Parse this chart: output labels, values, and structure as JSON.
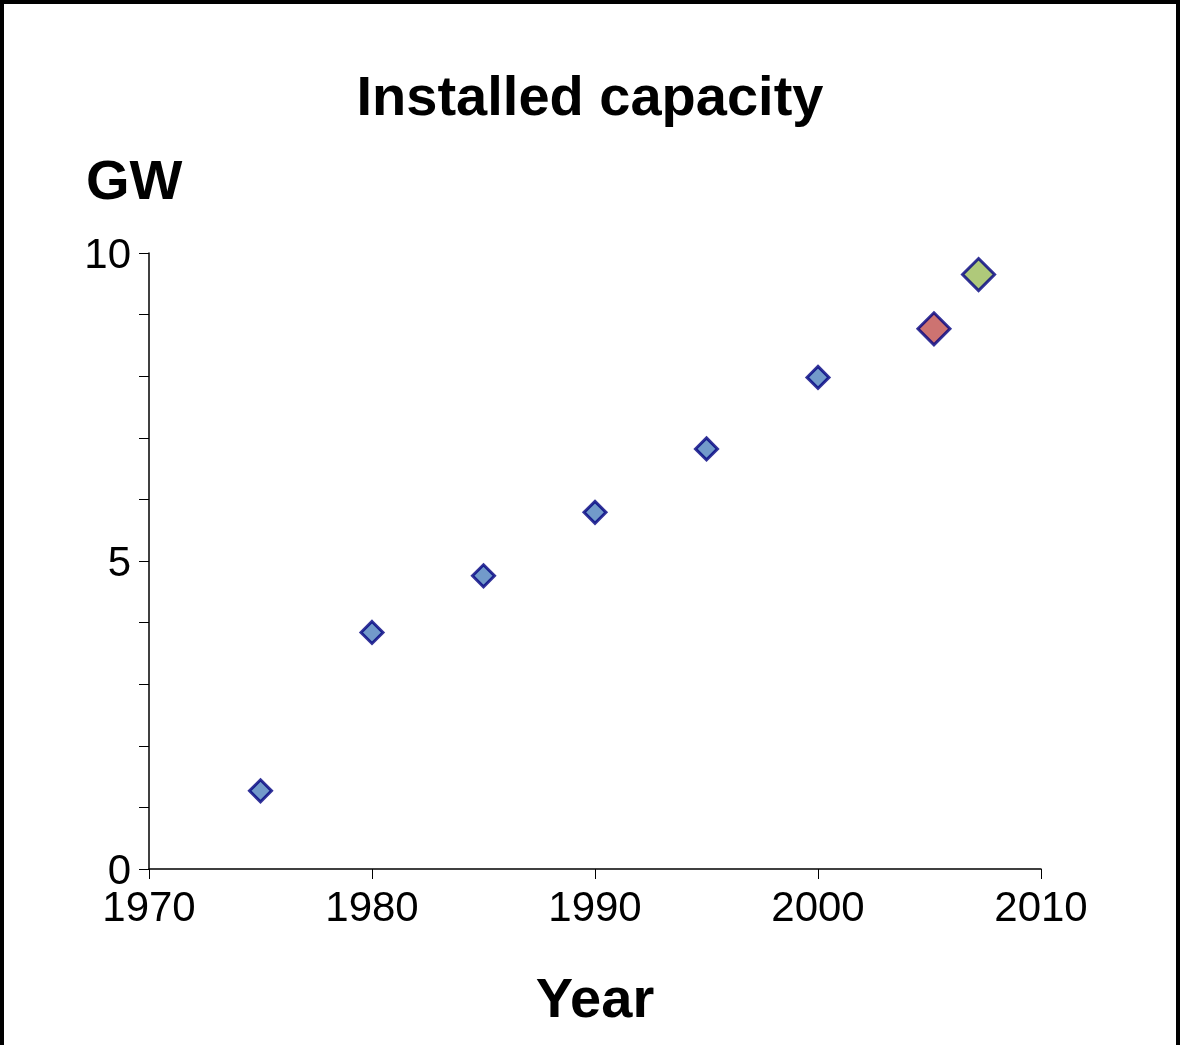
{
  "chart_data": {
    "type": "scatter",
    "title": "Installed capacity",
    "xlabel": "Year",
    "ylabel": "GW",
    "series": [
      {
        "color": "#4f81bd",
        "x": [
          1975,
          1980,
          1985,
          1990,
          1995,
          2000
        ],
        "values": [
          1.27,
          3.84,
          4.76,
          5.79,
          6.82,
          7.98
        ]
      },
      {
        "color": "#c0504d",
        "x": [
          2005.2
        ],
        "values": [
          8.77
        ]
      },
      {
        "color": "#9bbb59",
        "x": [
          2007.2
        ],
        "values": [
          9.65
        ]
      }
    ],
    "xlim": [
      1970,
      2010
    ],
    "xticks": [
      1970,
      1980,
      1990,
      2000,
      2010
    ],
    "ylim": [
      0,
      10
    ],
    "yticks": [
      0,
      {
        "value": 1,
        "label": null
      },
      {
        "value": 2,
        "label": null
      },
      {
        "value": 3,
        "label": null
      },
      {
        "value": 4,
        "label": null
      },
      5,
      {
        "value": 6,
        "label": null
      },
      {
        "value": 7,
        "label": null
      },
      {
        "value": 8,
        "label": null
      },
      {
        "value": 9,
        "label": null
      },
      10
    ],
    "marker": "diamond",
    "grid": false
  }
}
